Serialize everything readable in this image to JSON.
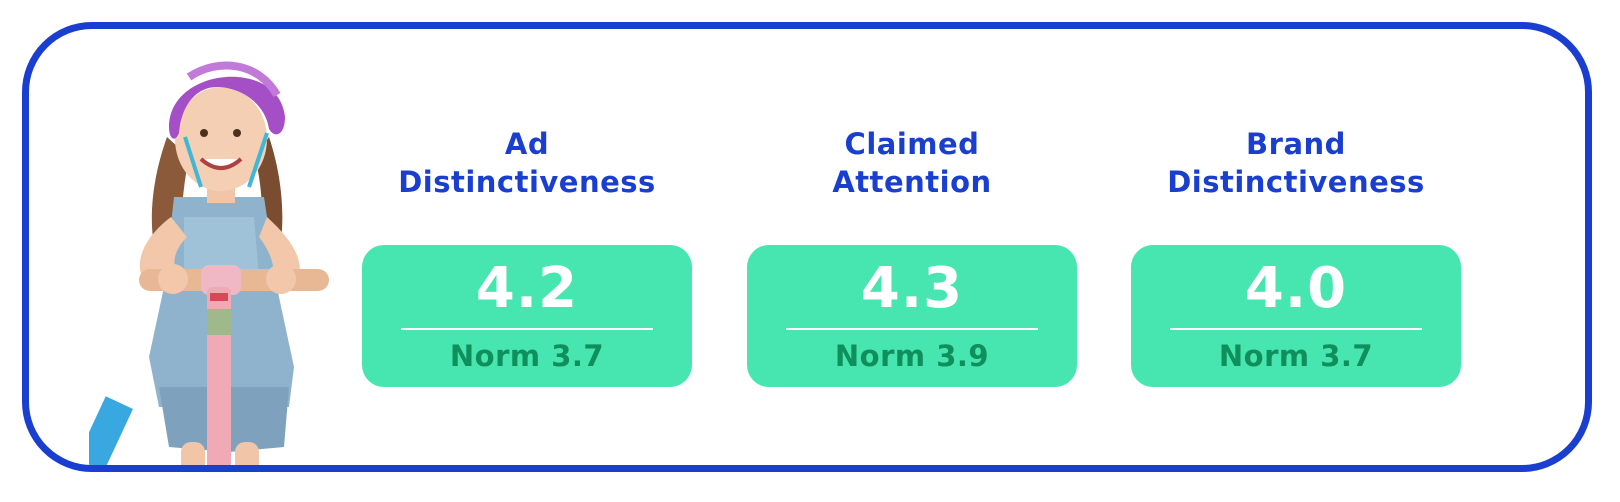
{
  "metrics": [
    {
      "title": "Ad\nDistinctiveness",
      "value": "4.2",
      "norm": "Norm 3.7"
    },
    {
      "title": "Claimed\nAttention",
      "value": "4.3",
      "norm": "Norm 3.9"
    },
    {
      "title": "Brand\nDistinctiveness",
      "value": "4.0",
      "norm": "Norm 3.7"
    }
  ],
  "colors": {
    "frame_border": "#1a3fd0",
    "title_text": "#1a3fd0",
    "card_background": "#47e6b0",
    "value_text": "#ffffff",
    "norm_text": "#0f8f5c"
  },
  "image": {
    "subject": "child-on-scooter-photo"
  }
}
